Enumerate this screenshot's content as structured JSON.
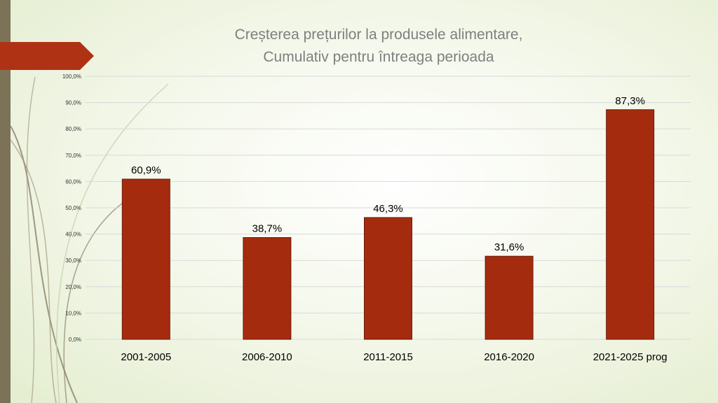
{
  "slide": {
    "title_line1": "Creșterea prețurilor la produsele alimentare,",
    "title_line2": "Cumulativ pentru întreaga perioada"
  },
  "colors": {
    "bar": "#a52b0f",
    "bar_stroke": "#6b1a08",
    "accent_tab": "#b03214",
    "left_bar": "#7c7257",
    "title": "#7f7f7f",
    "grid": "#d9d9d9"
  },
  "chart_data": {
    "type": "bar",
    "title": "Creșterea prețurilor la produsele alimentare, Cumulativ pentru întreaga perioada",
    "categories": [
      "2001-2005",
      "2006-2010",
      "2011-2015",
      "2016-2020",
      "2021-2025 prog"
    ],
    "values": [
      60.9,
      38.7,
      46.3,
      31.6,
      87.3
    ],
    "data_labels": [
      "60,9%",
      "38,7%",
      "46,3%",
      "31,6%",
      "87,3%"
    ],
    "ylim": [
      0,
      100
    ],
    "yticks": [
      "0,0%",
      "10,0%",
      "20,0%",
      "30,0%",
      "40,0%",
      "50,0%",
      "60,0%",
      "70,0%",
      "80,0%",
      "90,0%",
      "100,0%"
    ],
    "xlabel": "",
    "ylabel": "",
    "grid": true,
    "legend": "none"
  }
}
